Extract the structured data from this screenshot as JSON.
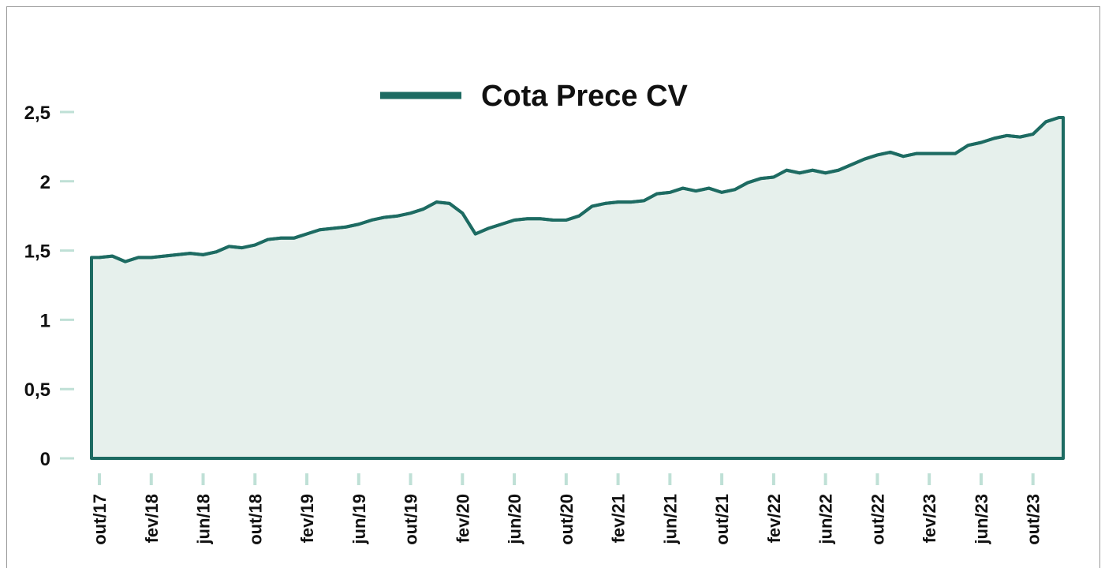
{
  "chart_data": {
    "type": "area",
    "series": [
      {
        "name": "Cota Prece CV",
        "color": "#1d6b62",
        "values": [
          1.45,
          1.46,
          1.42,
          1.45,
          1.45,
          1.46,
          1.47,
          1.48,
          1.47,
          1.49,
          1.53,
          1.52,
          1.54,
          1.58,
          1.59,
          1.59,
          1.62,
          1.65,
          1.66,
          1.67,
          1.69,
          1.72,
          1.74,
          1.75,
          1.77,
          1.8,
          1.85,
          1.84,
          1.77,
          1.62,
          1.66,
          1.69,
          1.72,
          1.73,
          1.73,
          1.72,
          1.72,
          1.75,
          1.82,
          1.84,
          1.85,
          1.85,
          1.86,
          1.91,
          1.92,
          1.95,
          1.93,
          1.95,
          1.92,
          1.94,
          1.99,
          2.02,
          2.03,
          2.08,
          2.06,
          2.08,
          2.06,
          2.08,
          2.12,
          2.16,
          2.19,
          2.21,
          2.18,
          2.2,
          2.2,
          2.2,
          2.2,
          2.26,
          2.28,
          2.31,
          2.33,
          2.32,
          2.34,
          2.43,
          2.46
        ]
      }
    ],
    "categories": [
      "out/17",
      null,
      null,
      null,
      "fev/18",
      null,
      null,
      null,
      "jun/18",
      null,
      null,
      null,
      "out/18",
      null,
      null,
      null,
      "fev/19",
      null,
      null,
      null,
      "jun/19",
      null,
      null,
      null,
      "out/19",
      null,
      null,
      null,
      "fev/20",
      null,
      null,
      null,
      "jun/20",
      null,
      null,
      null,
      "out/20",
      null,
      null,
      null,
      "fev/21",
      null,
      null,
      null,
      "jun/21",
      null,
      null,
      null,
      "out/21",
      null,
      null,
      null,
      "fev/22",
      null,
      null,
      null,
      "jun/22",
      null,
      null,
      null,
      "out/22",
      null,
      null,
      null,
      "fev/23",
      null,
      null,
      null,
      "jun/23",
      null,
      null,
      null,
      "out/23",
      null,
      null
    ],
    "ylim": [
      0,
      2.5
    ],
    "yticks": [
      0,
      {
        "value": 0.5,
        "label": "0,5"
      },
      1,
      {
        "value": 1.5,
        "label": "1,5"
      },
      2,
      {
        "value": 2.5,
        "label": "2,5"
      }
    ],
    "fill": "#e6f0ec",
    "tick_color": "#bfe0d6"
  }
}
